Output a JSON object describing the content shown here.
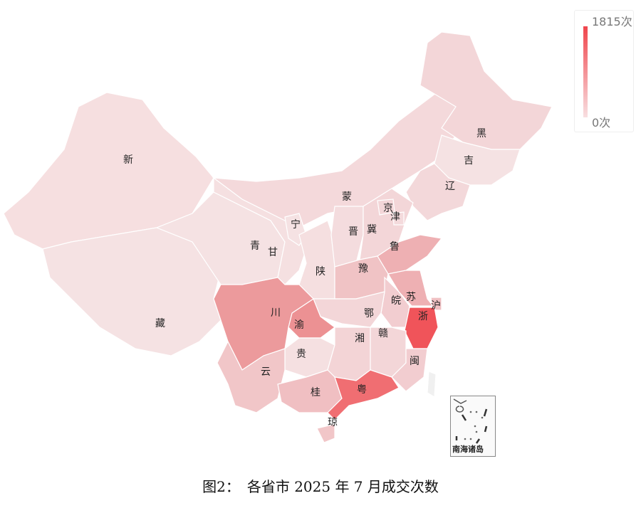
{
  "legend": {
    "max_label": "1815次",
    "min_label": "0次",
    "max_color": "#f0454c",
    "min_color": "#f8dfe1"
  },
  "inset": {
    "label": "南海诸岛"
  },
  "caption": "图2：　各省市 2025 年 7 月成交次数",
  "provinces": [
    {
      "id": "xinjiang",
      "label": "新",
      "fill": "#f6dfe0"
    },
    {
      "id": "tibet",
      "label": "藏",
      "fill": "#f5e2e3"
    },
    {
      "id": "qinghai",
      "label": "青",
      "fill": "#f5e2e3"
    },
    {
      "id": "gansu",
      "label": "甘",
      "fill": "#f5e0e1"
    },
    {
      "id": "neimenggu",
      "label": "蒙",
      "fill": "#f4d9db"
    },
    {
      "id": "heilongjiang",
      "label": "黑",
      "fill": "#f3d6d8"
    },
    {
      "id": "jilin",
      "label": "吉",
      "fill": "#f5e2e3"
    },
    {
      "id": "liaoning",
      "label": "辽",
      "fill": "#f3d8da"
    },
    {
      "id": "ningxia",
      "label": "宁",
      "fill": "#f5e2e3"
    },
    {
      "id": "shaanxi",
      "label": "陕",
      "fill": "#f5dfe0"
    },
    {
      "id": "shanxi",
      "label": "晋",
      "fill": "#f4dcde"
    },
    {
      "id": "hebei",
      "label": "冀",
      "fill": "#f3d6d8"
    },
    {
      "id": "beijing",
      "label": "京",
      "fill": "#f3d6d8"
    },
    {
      "id": "tianjin",
      "label": "津",
      "fill": "#f4dadc"
    },
    {
      "id": "shandong",
      "label": "鲁",
      "fill": "#eeb0b3"
    },
    {
      "id": "henan",
      "label": "豫",
      "fill": "#f0c3c5"
    },
    {
      "id": "jiangsu",
      "label": "苏",
      "fill": "#eeb0b3"
    },
    {
      "id": "anhui",
      "label": "皖",
      "fill": "#f2cdd0"
    },
    {
      "id": "shanghai",
      "label": "沪",
      "fill": "#f0c0c3"
    },
    {
      "id": "zhejiang",
      "label": "浙",
      "fill": "#f0545a"
    },
    {
      "id": "hubei",
      "label": "鄂",
      "fill": "#f3d6d8"
    },
    {
      "id": "chongqing",
      "label": "渝",
      "fill": "#ec9193"
    },
    {
      "id": "sichuan",
      "label": "川",
      "fill": "#ec9a9c"
    },
    {
      "id": "guizhou",
      "label": "贵",
      "fill": "#f5e0e1"
    },
    {
      "id": "hunan",
      "label": "湘",
      "fill": "#f3d4d6"
    },
    {
      "id": "jiangxi",
      "label": "赣",
      "fill": "#f3d6d8"
    },
    {
      "id": "fujian",
      "label": "闽",
      "fill": "#f2cdd0"
    },
    {
      "id": "yunnan",
      "label": "云",
      "fill": "#f1c6c8"
    },
    {
      "id": "guangxi",
      "label": "桂",
      "fill": "#f0bfc2"
    },
    {
      "id": "guangdong",
      "label": "粤",
      "fill": "#f06e72"
    },
    {
      "id": "hainan",
      "label": "琼",
      "fill": "#f1c6c8"
    },
    {
      "id": "taiwan",
      "label": "",
      "fill": "#f0f0f0"
    }
  ]
}
